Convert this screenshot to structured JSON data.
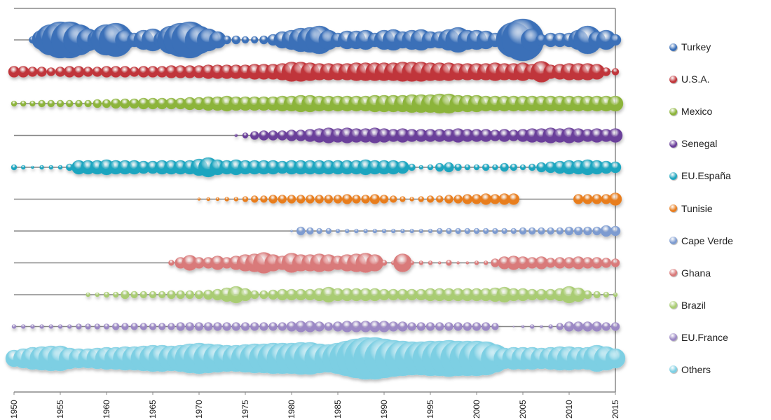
{
  "chart_data": {
    "type": "scatter",
    "subtype": "bubble",
    "title": "",
    "xlabel": "",
    "ylabel": "",
    "xlim": [
      1950,
      2015
    ],
    "x_ticks": [
      "1950",
      "1955",
      "1960",
      "1965",
      "1970",
      "1975",
      "1980",
      "1985",
      "1990",
      "1995",
      "2000",
      "2005",
      "2010",
      "2015"
    ],
    "x_start": 1950,
    "legend_position": "right",
    "series": [
      {
        "name": "Turkey",
        "color": "#3a6fb8",
        "sizes": [
          0,
          0,
          5,
          14,
          22,
          26,
          26,
          22,
          16,
          14,
          22,
          24,
          14,
          10,
          14,
          16,
          12,
          20,
          24,
          26,
          20,
          16,
          12,
          6,
          6,
          5,
          5,
          6,
          8,
          12,
          14,
          17,
          18,
          20,
          14,
          10,
          13,
          13,
          14,
          10,
          14,
          15,
          12,
          14,
          15,
          12,
          12,
          15,
          18,
          14,
          14,
          13,
          10,
          8,
          25,
          30,
          16,
          8,
          10,
          10,
          10,
          14,
          20,
          12,
          14,
          8
        ]
      },
      {
        "name": "U.S.A.",
        "color": "#c0353a",
        "sizes": [
          8,
          8,
          7,
          7,
          6,
          7,
          8,
          8,
          7,
          7,
          8,
          8,
          8,
          7,
          8,
          8,
          8,
          9,
          9,
          9,
          9,
          10,
          10,
          10,
          10,
          10,
          11,
          11,
          11,
          12,
          14,
          14,
          13,
          12,
          12,
          12,
          12,
          13,
          13,
          13,
          13,
          13,
          14,
          14,
          14,
          13,
          13,
          13,
          12,
          12,
          12,
          12,
          13,
          12,
          12,
          13,
          11,
          15,
          10,
          11,
          12,
          12,
          12,
          11,
          6,
          5
        ]
      },
      {
        "name": "Mexico",
        "color": "#8cb43a",
        "sizes": [
          4,
          4,
          4,
          5,
          5,
          5,
          5,
          5,
          5,
          6,
          6,
          7,
          7,
          7,
          8,
          8,
          8,
          8,
          8,
          9,
          9,
          10,
          10,
          11,
          10,
          10,
          10,
          10,
          10,
          11,
          11,
          12,
          12,
          11,
          11,
          11,
          11,
          11,
          11,
          12,
          12,
          12,
          12,
          13,
          13,
          13,
          14,
          14,
          12,
          12,
          12,
          11,
          11,
          11,
          11,
          11,
          11,
          11,
          11,
          11,
          11,
          11,
          11,
          11,
          11,
          11
        ]
      },
      {
        "name": "Senegal",
        "color": "#6a3f9a",
        "sizes": [
          0,
          0,
          0,
          0,
          0,
          0,
          0,
          0,
          0,
          0,
          0,
          0,
          0,
          0,
          0,
          0,
          0,
          0,
          0,
          0,
          0,
          0,
          0,
          0,
          2,
          4,
          6,
          7,
          7,
          7,
          8,
          8,
          9,
          10,
          11,
          10,
          11,
          10,
          10,
          11,
          10,
          9,
          10,
          9,
          9,
          9,
          9,
          9,
          10,
          9,
          9,
          9,
          8,
          9,
          8,
          9,
          10,
          10,
          11,
          10,
          11,
          10,
          9,
          10,
          9,
          10
        ]
      },
      {
        "name": "EU.España",
        "color": "#1ea5bf",
        "sizes": [
          4,
          3,
          2,
          3,
          3,
          3,
          5,
          10,
          10,
          10,
          11,
          10,
          10,
          10,
          9,
          9,
          10,
          10,
          10,
          10,
          12,
          14,
          11,
          10,
          11,
          10,
          10,
          10,
          10,
          9,
          10,
          10,
          10,
          10,
          10,
          10,
          10,
          10,
          11,
          10,
          10,
          10,
          9,
          5,
          3,
          4,
          6,
          7,
          5,
          4,
          4,
          5,
          4,
          6,
          5,
          4,
          5,
          7,
          8,
          9,
          10,
          10,
          11,
          10,
          9,
          8
        ]
      },
      {
        "name": "Tunisie",
        "color": "#e87d1e",
        "sizes": [
          0,
          0,
          0,
          0,
          0,
          0,
          0,
          0,
          0,
          0,
          0,
          0,
          0,
          0,
          0,
          0,
          0,
          0,
          0,
          0,
          2,
          2.5,
          2.5,
          3,
          3,
          4,
          5,
          5,
          6,
          6,
          6,
          6,
          6,
          6,
          6,
          6,
          7,
          6,
          6,
          7,
          6,
          5,
          4,
          3,
          4,
          5,
          5,
          6,
          6,
          7,
          7,
          8,
          7,
          8,
          8,
          0,
          0,
          0,
          0,
          0,
          0,
          7,
          7,
          7,
          7,
          9
        ]
      },
      {
        "name": "Cape Verde",
        "color": "#7d9bd0",
        "sizes": [
          0,
          0,
          0,
          0,
          0,
          0,
          0,
          0,
          0,
          0,
          0,
          0,
          0,
          0,
          0,
          0,
          0,
          0,
          0,
          0,
          0,
          0,
          0,
          0,
          0,
          0,
          0,
          0,
          0,
          0,
          1.5,
          6,
          5,
          4,
          4,
          3,
          3,
          3,
          3,
          3,
          3,
          3,
          3,
          3,
          3,
          3,
          4,
          4,
          4,
          4,
          4,
          4,
          4,
          4,
          4,
          5,
          5,
          5,
          5,
          5,
          6,
          6,
          6,
          6,
          8,
          7
        ]
      },
      {
        "name": "Ghana",
        "color": "#d97a7a",
        "sizes": [
          0,
          0,
          0,
          0,
          0,
          0,
          0,
          0,
          0,
          0,
          0,
          0,
          0,
          0,
          0,
          0,
          0,
          4,
          8,
          11,
          8,
          8,
          10,
          8,
          10,
          12,
          13,
          15,
          12,
          10,
          14,
          12,
          12,
          13,
          12,
          10,
          12,
          13,
          14,
          12,
          4,
          3,
          13,
          3,
          3,
          3,
          2,
          4,
          2,
          2,
          3,
          3,
          6,
          9,
          10,
          9,
          8,
          9,
          7,
          8,
          8,
          9,
          8,
          8,
          7,
          6
        ]
      },
      {
        "name": "Brazil",
        "color": "#a9cc73",
        "sizes": [
          0,
          0,
          0,
          0,
          0,
          0,
          0,
          0,
          3,
          3,
          4,
          4,
          6,
          5,
          5,
          5,
          5,
          6,
          6,
          6,
          6,
          7,
          8,
          10,
          12,
          9,
          6,
          6,
          7,
          8,
          8,
          8,
          8,
          9,
          11,
          9,
          9,
          9,
          9,
          9,
          8,
          8,
          8,
          8,
          8,
          9,
          9,
          9,
          9,
          9,
          9,
          9,
          10,
          11,
          9,
          9,
          8,
          8,
          8,
          9,
          12,
          10,
          6,
          5,
          4,
          3
        ]
      },
      {
        "name": "EU.France",
        "color": "#9b88c4",
        "sizes": [
          3,
          3,
          3,
          3,
          3,
          3,
          3,
          4,
          4,
          4,
          4,
          5,
          5,
          5,
          5,
          5,
          5,
          5,
          6,
          6,
          6,
          6,
          6,
          6,
          6,
          6,
          6,
          6,
          6,
          6,
          7,
          8,
          8,
          7,
          6,
          7,
          8,
          8,
          8,
          8,
          8,
          7,
          7,
          6,
          6,
          6,
          6,
          6,
          6,
          6,
          6,
          6,
          5,
          0,
          1,
          2,
          3,
          2,
          3,
          5,
          7,
          7,
          7,
          7,
          6,
          6
        ]
      },
      {
        "name": "Others",
        "color": "#7dcfe3",
        "sizes": [
          12,
          14,
          16,
          17,
          18,
          18,
          15,
          14,
          14,
          15,
          16,
          16,
          17,
          17,
          18,
          19,
          19,
          18,
          19,
          21,
          22,
          21,
          20,
          19,
          19,
          20,
          21,
          21,
          22,
          22,
          22,
          23,
          23,
          21,
          20,
          22,
          25,
          28,
          30,
          30,
          28,
          26,
          25,
          24,
          24,
          25,
          25,
          26,
          25,
          25,
          25,
          24,
          20,
          15,
          16,
          16,
          16,
          15,
          16,
          17,
          17,
          16,
          16,
          19,
          17,
          14
        ]
      }
    ]
  }
}
